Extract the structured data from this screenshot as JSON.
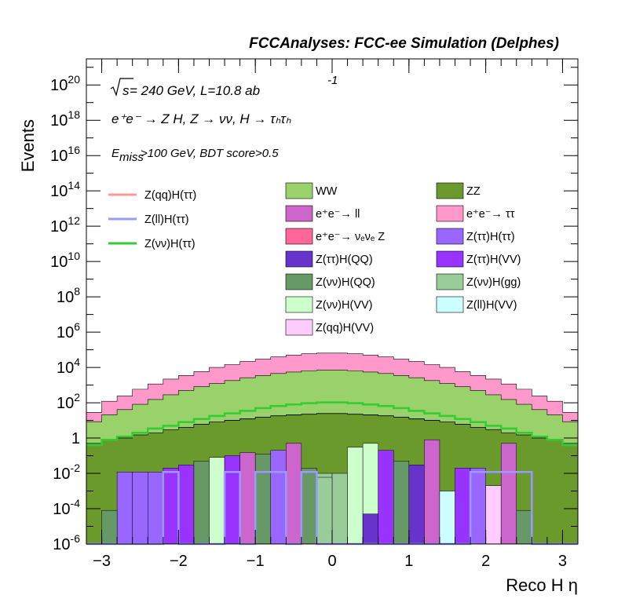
{
  "title": "FCCAnalyses: FCC-ee Simulation (Delphes)",
  "annotations": {
    "sqrt_s": "s",
    "energy_lumi": " = 240 GeV, L=10.8 ab",
    "lumi_exp": "-1",
    "process": "e⁺e⁻ → Z H, Z → νν, H → τₕτₕ",
    "cut_E": "E",
    "cut_sub": "miss",
    "cut_rest": ">100 GeV, BDT score>0.5"
  },
  "colors": {
    "WW": "#99d26b",
    "ZZ": "#6a9a2c",
    "ee_ll": "#cc66cc",
    "ee_tautau": "#ff99cc",
    "ee_nunuZ": "#ff6699",
    "ztautau_htautau": "#9966ff",
    "ztautau_hqq": "#6633cc",
    "ztautau_hvv": "#9933ff",
    "znunu_hqq": "#669966",
    "znunu_hgg": "#99cc99",
    "znunu_hvv": "#ccffcc",
    "zll_hvv": "#ccffff",
    "zqq_hvv": "#ffccff",
    "sig_qq": "#ff9999",
    "sig_ll": "#9999ff",
    "sig_nunu": "#33cc33"
  },
  "chart_data": {
    "type": "bar",
    "title": "FCCAnalyses: FCC-ee Simulation (Delphes)",
    "xlabel": "Reco H η",
    "ylabel": "Events",
    "xlim": [
      -3.2,
      3.2
    ],
    "ylim": [
      1e-06,
      3e+21
    ],
    "yscale": "log",
    "x_ticks": [
      -3,
      -2,
      -1,
      0,
      1,
      2,
      3
    ],
    "x_tick_labels": [
      "−3",
      "−2",
      "−1",
      "0",
      "1",
      "2",
      "3"
    ],
    "y_ticks": [
      "10^-6",
      "10^-4",
      "10^-2",
      "1",
      "10^2",
      "10^4",
      "10^6",
      "10^8",
      "10^10",
      "10^12",
      "10^14",
      "10^16",
      "10^18",
      "10^20"
    ],
    "bin_edges": [
      -3.2,
      -3.0,
      -2.8,
      -2.6,
      -2.4,
      -2.2,
      -2.0,
      -1.8,
      -1.6,
      -1.4,
      -1.2,
      -1.0,
      -0.8,
      -0.6,
      -0.4,
      -0.2,
      0.0,
      0.2,
      0.4,
      0.6,
      0.8,
      1.0,
      1.2,
      1.4,
      1.6,
      1.8,
      2.0,
      2.2,
      2.4,
      2.6,
      2.8,
      3.0,
      3.2
    ],
    "stack_totals": [
      30,
      130,
      250,
      600,
      1200,
      2200,
      3600,
      6000,
      10000,
      15000,
      22000,
      30000,
      40000,
      50000,
      60000,
      65000,
      65000,
      60000,
      50000,
      40000,
      30000,
      22000,
      15000,
      10000,
      6000,
      3600,
      2200,
      1200,
      600,
      250,
      130,
      30
    ],
    "stacked_layers": [
      {
        "name": "ZZ",
        "values": [
          0.5,
          0.8,
          1,
          1.5,
          2,
          3,
          4,
          6,
          8,
          10,
          12,
          15,
          18,
          20,
          22,
          24,
          24,
          22,
          20,
          18,
          15,
          12,
          10,
          8,
          6,
          4,
          3,
          2,
          1.5,
          1,
          0.8,
          0.5
        ]
      },
      {
        "name": "e⁺e⁻→ νₑνₑ Z",
        "values": [
          1e-06,
          1e-06,
          1e-06,
          1e-06,
          1e-06,
          1e-06,
          0.1,
          0.15,
          0.2,
          0.3,
          0.4,
          0.5,
          0.6,
          0.7,
          0.8,
          0.8,
          0.8,
          0.8,
          0.7,
          0.6,
          0.5,
          0.4,
          0.3,
          0.2,
          0.15,
          0.1,
          0.05,
          1e-06,
          1e-06,
          1e-06,
          1e-06,
          1e-06
        ]
      },
      {
        "name": "WW",
        "values": [
          8,
          20,
          40,
          80,
          150,
          280,
          500,
          800,
          1200,
          1800,
          2600,
          3500,
          4500,
          5500,
          6500,
          7000,
          7000,
          6500,
          5500,
          4500,
          3500,
          2600,
          1800,
          1200,
          800,
          500,
          280,
          150,
          80,
          40,
          20,
          8
        ]
      },
      {
        "name": "e⁺e⁻→ ττ",
        "values": [
          20,
          100,
          200,
          500,
          1000,
          1900,
          3000,
          5000,
          8800,
          13000,
          19000,
          26000,
          35000,
          44000,
          53000,
          58000,
          58000,
          53000,
          44000,
          35000,
          26000,
          19000,
          13000,
          8800,
          5000,
          3000,
          1900,
          1000,
          500,
          200,
          100,
          20
        ]
      }
    ],
    "series": [
      {
        "name": "Z(qq)H(ττ)",
        "values": [
          0,
          0,
          0,
          0,
          0,
          0,
          0,
          0,
          0,
          0,
          0,
          0,
          0,
          0,
          0,
          0,
          0,
          0,
          0,
          0,
          0,
          0,
          0,
          0,
          0,
          0,
          0,
          0,
          0,
          0,
          0,
          0
        ]
      },
      {
        "name": "Z(ll)H(ττ)",
        "values": [
          1e-06,
          1e-06,
          1e-06,
          1e-06,
          1e-06,
          0.012,
          1e-06,
          1e-06,
          1e-06,
          0.012,
          1e-06,
          0.012,
          0.012,
          1e-06,
          0.012,
          1e-06,
          1e-06,
          1e-06,
          1e-06,
          1e-06,
          1e-06,
          1e-06,
          1e-06,
          1e-06,
          1e-06,
          0.012,
          0.012,
          0.012,
          0.012,
          1e-06,
          1e-06,
          1e-06
        ]
      },
      {
        "name": "Z(νν)H(ττ)",
        "values": [
          0.4,
          0.8,
          1.2,
          2,
          3.5,
          5,
          8,
          12,
          18,
          25,
          35,
          50,
          65,
          80,
          95,
          105,
          105,
          95,
          80,
          65,
          50,
          35,
          25,
          18,
          12,
          8,
          5,
          3.5,
          2,
          1.2,
          0.8,
          0.4
        ]
      }
    ],
    "legend": {
      "placement": "top",
      "line_entries": [
        "Z(qq)H(ττ)",
        "Z(ll)H(ττ)",
        "Z(νν)H(ττ)"
      ],
      "fill_entries": [
        [
          "WW",
          "ZZ"
        ],
        [
          "e⁺e⁻→ ll",
          "e⁺e⁻→ ττ"
        ],
        [
          "e⁺e⁻→ νₑνₑ Z",
          "Z(ττ)H(ττ)"
        ],
        [
          "Z(ττ)H(QQ)",
          "Z(ττ)H(VV)"
        ],
        [
          "Z(νν)H(QQ)",
          "Z(νν)H(gg)"
        ],
        [
          "Z(νν)H(VV)",
          "Z(ll)H(VV)"
        ],
        [
          "Z(qq)H(VV)",
          ""
        ]
      ]
    }
  }
}
